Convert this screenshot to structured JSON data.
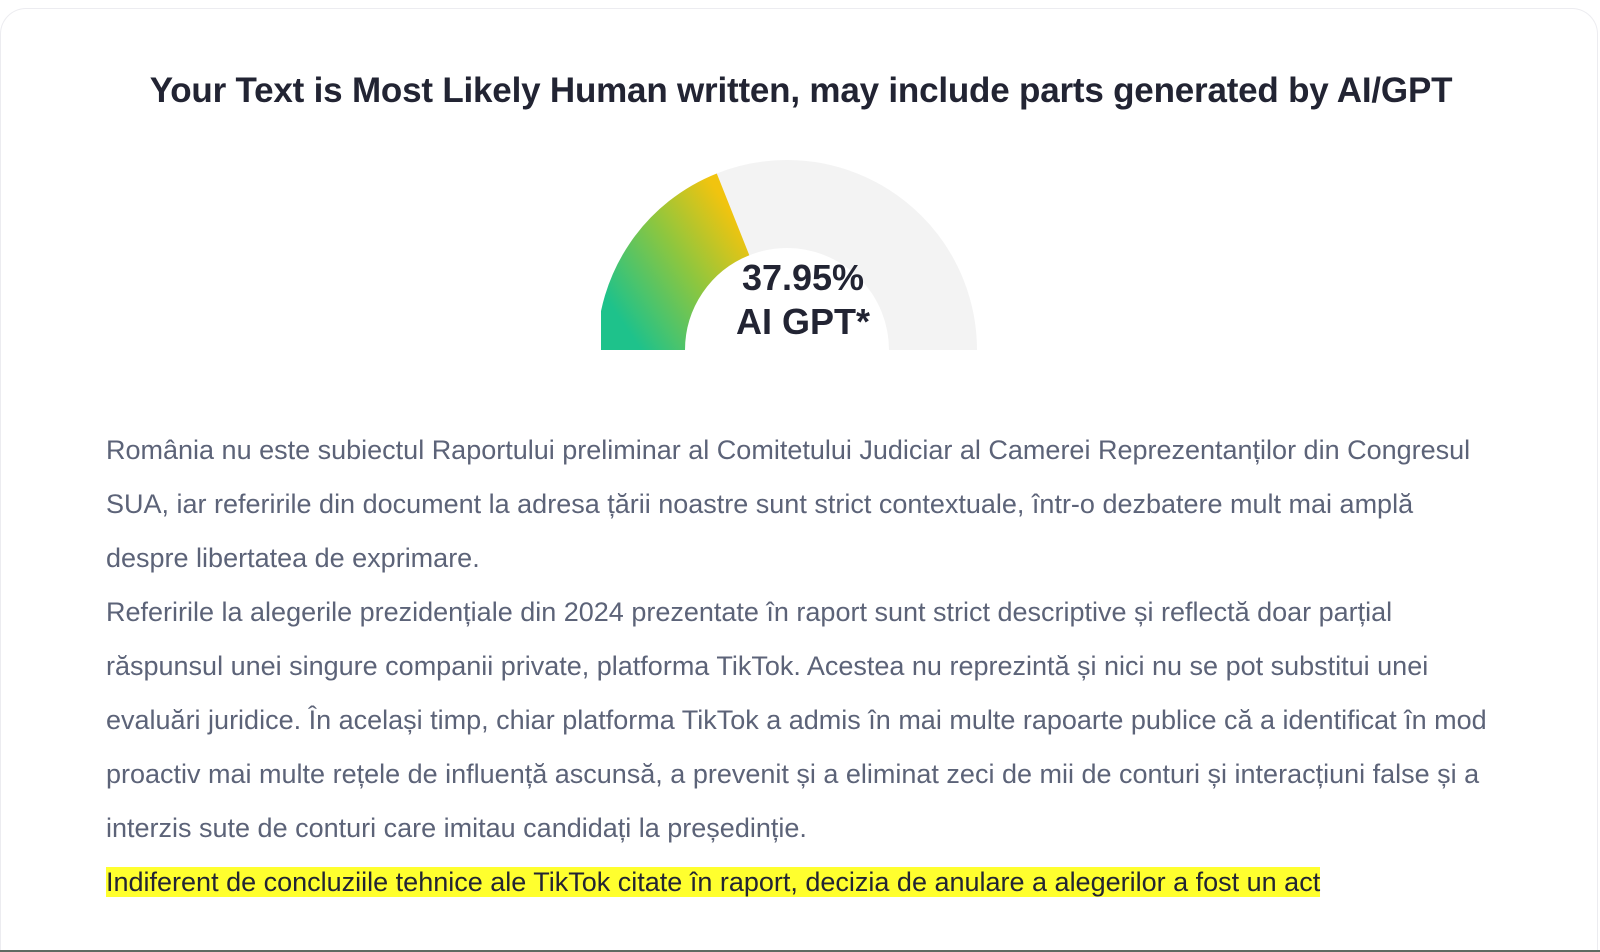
{
  "result": {
    "title": "Your Text is Most Likely Human written, may include parts generated by AI/GPT"
  },
  "gauge": {
    "value_percent": 37.95,
    "percent_text": "37.95%",
    "label": "AI GPT*",
    "gradient_start_color": "#1ec28b",
    "gradient_mid_color": "#8dc63f",
    "gradient_end_color": "#f1c40f",
    "track_color": "#f3f3f3"
  },
  "text": {
    "paragraphs": [
      "România nu este subiectul Raportului preliminar al Comitetului Judiciar al Camerei Reprezentanților din Congresul SUA, iar referirile din document la adresa țării noastre sunt strict contextuale, într-o dezbatere mult mai amplă despre libertatea de exprimare.",
      "Referirile la alegerile prezidențiale din 2024 prezentate în raport sunt strict descriptive și reflectă doar parțial răspunsul unei singure companii private, platforma TikTok. Acestea nu reprezintă și nici nu se pot substitui unei evaluări juridice. În același timp, chiar platforma TikTok a admis în mai multe rapoarte publice că a identificat în mod proactiv mai multe rețele de influență ascunsă, a prevenit și a eliminat zeci de mii de conturi și interacțiuni false și a interzis sute de conturi care imitau candidați la președinție."
    ],
    "highlighted": "Indiferent de concluziile tehnice ale TikTok citate în raport, decizia de anulare a alegerilor a fost un act",
    "highlight_color": "#ffff2e"
  }
}
